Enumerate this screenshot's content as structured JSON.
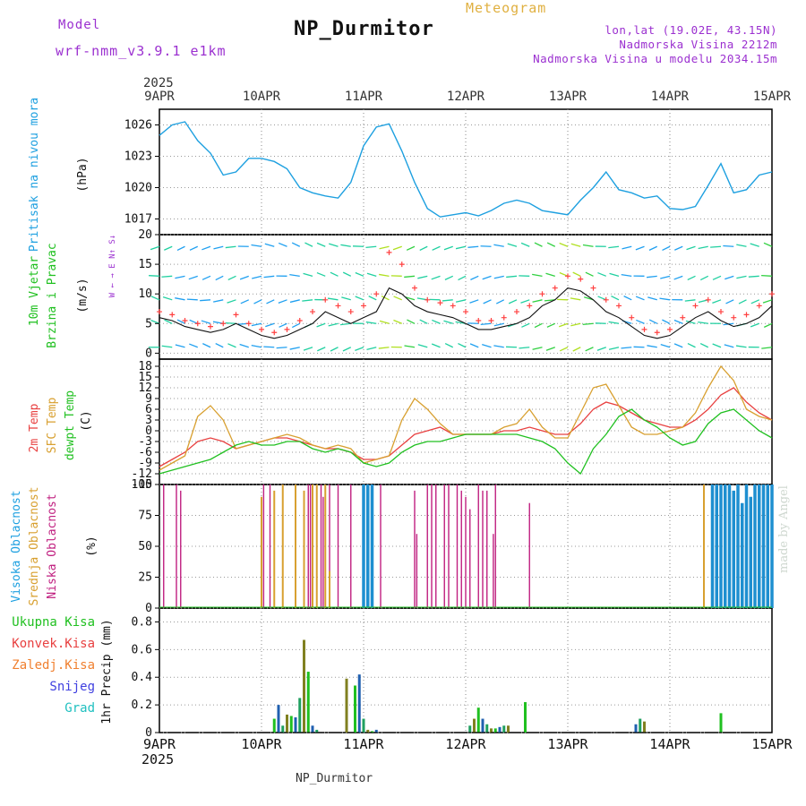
{
  "header": {
    "model_label": "Model",
    "model_name": "wrf-nmm_v3.9.1  e1km",
    "station": "NP_Durmitor",
    "meteogram_label": "Meteogram",
    "lonlat": "lon,lat (19.02E, 43.15N)",
    "elevation": "Nadmorska Visina 2212m",
    "model_elevation": "Nadmorska Visina u modelu 2034.15m"
  },
  "footer": {
    "station": "NP_Durmitor",
    "credit": "made by Angel"
  },
  "time_axis": {
    "year": "2025",
    "ticks": [
      "9APR",
      "10APR",
      "11APR",
      "12APR",
      "13APR",
      "14APR",
      "15APR"
    ],
    "range_hours": [
      0,
      144
    ]
  },
  "colors": {
    "pressure": "#1ea0e0",
    "t2m": "#e84040",
    "sfc": "#d8a030",
    "dewpt": "#20c020",
    "high_cloud": "#1e8fd0",
    "mid_cloud": "#d8a030",
    "low_cloud": "#c02080",
    "wind_speed": "#111111",
    "gust_marker": "#ff4040"
  },
  "panels": {
    "pressure": {
      "label": "Pritisak na nivou mora",
      "unit": "(hPa)",
      "ticks": [
        "1026",
        "1023",
        "1020",
        "1017"
      ]
    },
    "wind": {
      "label1": "10m Vjetar",
      "label2": "Brzina i Pravac",
      "unit": "(m/s)",
      "ticks": [
        "20",
        "15",
        "10",
        "5",
        "0"
      ],
      "compass": "W ← → E  N↑ S↓"
    },
    "temp": {
      "label1": "2m Temp",
      "label2": "SFC Temp",
      "label3": "dewpt Temp",
      "unit": "(C)",
      "ticks": [
        "18",
        "15",
        "12",
        "9",
        "6",
        "3",
        "0",
        "-3",
        "-6",
        "-9",
        "-12",
        "-15"
      ]
    },
    "cloud": {
      "label1": "Visoka Oblacnost",
      "label2": "Srednja Oblacnost",
      "label3": "Niska Oblacnost",
      "unit": "(%)",
      "ticks": [
        "100",
        "75",
        "50",
        "25",
        "0"
      ]
    },
    "precip": {
      "unit": "1hr Precip (mm)",
      "ticks": [
        "0.8",
        "0.6",
        "0.4",
        "0.2",
        "0"
      ],
      "legend": [
        "Ukupna Kisa",
        "Konvek.Kisa",
        "Zaledj.Kisa",
        "Snijeg",
        "Grad"
      ],
      "legend_colors": [
        "#20c020",
        "#e84040",
        "#f08030",
        "#4040e0",
        "#20c0c0"
      ]
    }
  },
  "chart_data": [
    {
      "type": "line",
      "title": "Pritisak na nivou mora",
      "ylabel": "(hPa)",
      "ylim": [
        1015.5,
        1027.5
      ],
      "x_hours": [
        0,
        3,
        6,
        9,
        12,
        15,
        18,
        21,
        24,
        27,
        30,
        33,
        36,
        39,
        42,
        45,
        48,
        51,
        54,
        57,
        60,
        63,
        66,
        69,
        72,
        75,
        78,
        81,
        84,
        87,
        90,
        93,
        96,
        99,
        102,
        105,
        108,
        111,
        114,
        117,
        120,
        123,
        126,
        129,
        132,
        135,
        138,
        141,
        144
      ],
      "series": [
        {
          "values": [
            1025.0,
            1026.0,
            1026.3,
            1024.5,
            1023.3,
            1021.2,
            1021.5,
            1022.8,
            1022.8,
            1022.5,
            1021.8,
            1020.0,
            1019.5,
            1019.2,
            1019.0,
            1020.5,
            1024.0,
            1025.8,
            1026.1,
            1023.5,
            1020.5,
            1018.0,
            1017.2,
            1017.4,
            1017.6,
            1017.3,
            1017.8,
            1018.5,
            1018.8,
            1018.5,
            1017.8,
            1017.6,
            1017.4,
            1018.8,
            1020.0,
            1021.5,
            1019.8,
            1019.5,
            1019.0,
            1019.2,
            1018.0,
            1017.9,
            1018.2,
            1020.2,
            1022.3,
            1019.5,
            1019.8,
            1021.2,
            1021.5
          ]
        }
      ]
    },
    {
      "type": "line",
      "title": "10m Vjetar Brzina i Pravac",
      "ylabel": "(m/s)",
      "ylim": [
        -1,
        20
      ],
      "x_hours": [
        0,
        3,
        6,
        9,
        12,
        15,
        18,
        21,
        24,
        27,
        30,
        33,
        36,
        39,
        42,
        45,
        48,
        51,
        54,
        57,
        60,
        63,
        66,
        69,
        72,
        75,
        78,
        81,
        84,
        87,
        90,
        93,
        96,
        99,
        102,
        105,
        108,
        111,
        114,
        117,
        120,
        123,
        126,
        129,
        132,
        135,
        138,
        141,
        144
      ],
      "series": [
        {
          "name": "speed",
          "values": [
            6,
            5.5,
            4.5,
            4,
            3.5,
            4,
            5,
            4,
            3,
            2.5,
            3,
            4,
            5,
            7,
            6,
            5,
            6,
            7,
            11,
            10,
            8,
            7,
            6.5,
            6,
            5,
            4,
            4,
            4.5,
            5,
            6,
            8,
            9,
            11,
            10.5,
            9,
            7,
            6,
            4.5,
            3,
            2.5,
            3,
            4.5,
            6,
            7,
            5.5,
            4.5,
            5,
            6,
            8
          ]
        },
        {
          "name": "gust",
          "values": [
            7,
            6.5,
            5.5,
            5,
            4.5,
            5,
            6.5,
            5,
            4,
            3.5,
            4,
            5.5,
            7,
            9,
            8,
            7,
            8,
            10,
            17,
            15,
            11,
            9,
            8.5,
            8,
            7,
            5.5,
            5.5,
            6,
            7,
            8,
            10,
            11,
            13,
            12.5,
            11,
            9,
            8,
            6,
            4,
            3.5,
            4,
            6,
            8,
            9,
            7,
            6,
            6.5,
            8,
            10
          ]
        }
      ]
    },
    {
      "type": "line",
      "title": "2m Temp / SFC Temp / dewpt Temp",
      "ylabel": "(C)",
      "ylim": [
        -15,
        20
      ],
      "x_hours": [
        0,
        3,
        6,
        9,
        12,
        15,
        18,
        21,
        24,
        27,
        30,
        33,
        36,
        39,
        42,
        45,
        48,
        51,
        54,
        57,
        60,
        63,
        66,
        69,
        72,
        75,
        78,
        81,
        84,
        87,
        90,
        93,
        96,
        99,
        102,
        105,
        108,
        111,
        114,
        117,
        120,
        123,
        126,
        129,
        132,
        135,
        138,
        141,
        144
      ],
      "series": [
        {
          "name": "2m Temp",
          "values": [
            -10,
            -8,
            -6,
            -3,
            -2,
            -3,
            -5,
            -4,
            -3,
            -2,
            -2,
            -3,
            -4,
            -5,
            -5,
            -6,
            -8,
            -8,
            -7,
            -4,
            -1,
            0,
            1,
            -1,
            -1,
            -1,
            -1,
            0,
            0,
            1,
            0,
            -1,
            -1,
            2,
            6,
            8,
            7,
            5,
            3,
            2,
            1,
            1,
            3,
            6,
            10,
            12,
            8,
            5,
            3
          ]
        },
        {
          "name": "SFC Temp",
          "values": [
            -11,
            -9,
            -7,
            4,
            7,
            3,
            -5,
            -4,
            -3,
            -2,
            -1,
            -2,
            -4,
            -5,
            -4,
            -5,
            -9,
            -8,
            -7,
            3,
            9,
            6,
            2,
            -1,
            -1,
            -1,
            -1,
            1,
            2,
            6,
            1,
            -2,
            -2,
            5,
            12,
            13,
            7,
            1,
            -1,
            -1,
            0,
            1,
            5,
            12,
            18,
            14,
            6,
            4,
            3
          ]
        },
        {
          "name": "dewpt Temp",
          "values": [
            -12,
            -11,
            -10,
            -9,
            -8,
            -6,
            -4,
            -3,
            -4,
            -4,
            -3,
            -3,
            -5,
            -6,
            -5,
            -6,
            -9,
            -10,
            -9,
            -6,
            -4,
            -3,
            -3,
            -2,
            -1,
            -1,
            -1,
            -1,
            -1,
            -2,
            -3,
            -5,
            -9,
            -12,
            -5,
            -1,
            4,
            6,
            3,
            1,
            -2,
            -4,
            -3,
            2,
            5,
            6,
            3,
            0,
            -2
          ]
        }
      ]
    },
    {
      "type": "bar",
      "title": "Visoka / Srednja / Niska Oblacnost",
      "ylabel": "(%)",
      "ylim": [
        0,
        100
      ],
      "series": [
        {
          "name": "Niska Oblacnost",
          "x_hours": [
            1,
            4,
            5,
            24.5,
            26,
            35,
            35.5,
            38,
            38.5,
            40,
            42,
            45,
            52,
            60,
            60.5,
            63,
            64,
            65,
            67,
            68,
            70,
            71,
            72,
            73,
            75,
            76,
            77,
            78.5,
            79,
            87,
            128
          ],
          "values": [
            100,
            100,
            95,
            100,
            100,
            100,
            100,
            100,
            90,
            100,
            100,
            100,
            100,
            95,
            60,
            100,
            100,
            100,
            100,
            100,
            100,
            95,
            90,
            80,
            100,
            95,
            95,
            60,
            100,
            85,
            90
          ]
        },
        {
          "name": "Srednja Oblacnost",
          "x_hours": [
            24,
            27,
            29,
            32,
            34,
            36,
            37,
            39,
            40,
            128
          ],
          "values": [
            90,
            95,
            100,
            100,
            95,
            100,
            100,
            100,
            30,
            100
          ]
        },
        {
          "name": "Visoka Oblacnost",
          "x_hours": [
            48,
            49,
            50,
            130,
            131,
            132,
            133,
            134,
            135,
            136,
            137,
            138,
            139,
            140,
            141,
            142,
            143,
            144
          ],
          "values": [
            100,
            100,
            100,
            100,
            100,
            100,
            100,
            100,
            95,
            100,
            85,
            100,
            90,
            100,
            100,
            100,
            100,
            100
          ]
        }
      ]
    },
    {
      "type": "bar",
      "title": "1hr Precip",
      "ylabel": "1hr Precip (mm)",
      "ylim": [
        0,
        0.9
      ],
      "series": [
        {
          "name": "Ukupna Kisa",
          "x_hours": [
            27,
            28,
            29,
            30,
            31,
            32,
            33,
            34,
            35,
            36,
            37,
            44,
            46,
            47,
            48,
            49,
            50,
            51,
            73,
            74,
            75,
            76,
            77,
            78,
            79,
            80,
            81,
            82,
            86,
            112,
            113,
            114,
            132
          ],
          "values": [
            0.1,
            0.2,
            0.05,
            0.13,
            0.12,
            0.11,
            0.25,
            0.67,
            0.44,
            0.05,
            0.02,
            0.39,
            0.34,
            0.42,
            0.1,
            0.02,
            0.01,
            0.02,
            0.05,
            0.1,
            0.18,
            0.1,
            0.06,
            0.03,
            0.03,
            0.04,
            0.05,
            0.05,
            0.22,
            0.06,
            0.1,
            0.08,
            0.14
          ]
        }
      ]
    }
  ]
}
